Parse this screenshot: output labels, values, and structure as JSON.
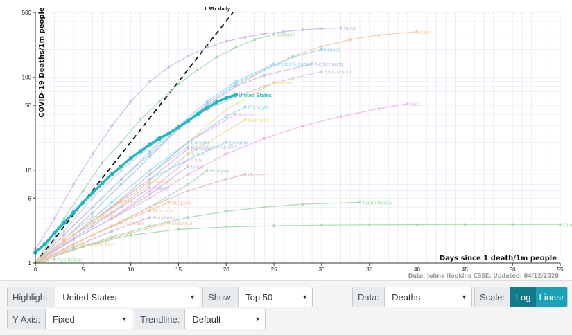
{
  "chart_data": {
    "type": "line",
    "title": "",
    "xlabel": "Days since 1 death/1m people",
    "ylabel": "COVID-19 Deaths/1m people",
    "yscale": "log",
    "xlim": [
      0,
      55
    ],
    "ylim": [
      1,
      500
    ],
    "xticks": [
      0,
      5,
      10,
      15,
      20,
      25,
      30,
      35,
      40,
      45,
      50,
      55
    ],
    "yticks": [
      1,
      5,
      10,
      50,
      100,
      500
    ],
    "source": "Data: Johns Hopkins CSSE; Updated: 04/12/2020",
    "highlight": "United States",
    "trendline": {
      "label": "1.35x daily",
      "rate": 1.35
    },
    "series": [
      {
        "name": "Spain",
        "color": "#c9b6e4",
        "end": [
          32,
          340
        ],
        "x": [
          0,
          2,
          4,
          6,
          8,
          10,
          12,
          14,
          16,
          18,
          20,
          22,
          24,
          26,
          28,
          30,
          32
        ],
        "y": [
          1.4,
          3,
          7,
          15,
          30,
          55,
          90,
          130,
          170,
          210,
          245,
          270,
          295,
          310,
          325,
          335,
          340
        ]
      },
      {
        "name": "Italy",
        "color": "#f7c59f",
        "end": [
          40,
          310
        ],
        "x": [
          0,
          3,
          6,
          9,
          12,
          15,
          18,
          21,
          24,
          27,
          30,
          33,
          36,
          40
        ],
        "y": [
          1,
          1.8,
          3.5,
          7,
          14,
          28,
          50,
          80,
          120,
          170,
          215,
          255,
          285,
          310
        ]
      },
      {
        "name": "Belgium",
        "color": "#9ed9a7",
        "end": [
          25,
          290
        ],
        "x": [
          0,
          3,
          5,
          7,
          9,
          11,
          13,
          15,
          17,
          19,
          21,
          23,
          25
        ],
        "y": [
          1,
          3,
          6,
          12,
          20,
          35,
          55,
          85,
          120,
          165,
          210,
          255,
          290
        ]
      },
      {
        "name": "France",
        "color": "#8fd7f0",
        "end": [
          30,
          200
        ],
        "x": [
          0,
          3,
          6,
          9,
          12,
          15,
          18,
          21,
          24,
          27,
          30
        ],
        "y": [
          1,
          1.8,
          3.5,
          7,
          14,
          28,
          52,
          85,
          120,
          165,
          200
        ]
      },
      {
        "name": "United Kingdom",
        "color": "#8fd7f0",
        "end": [
          25,
          140
        ],
        "x": [
          0,
          3,
          6,
          9,
          12,
          15,
          18,
          21,
          25
        ],
        "y": [
          1,
          2,
          4,
          8,
          16,
          30,
          55,
          90,
          140
        ]
      },
      {
        "name": "Netherlands",
        "color": "#c9b6e4",
        "end": [
          29,
          140
        ],
        "x": [
          0,
          3,
          6,
          9,
          12,
          15,
          18,
          21,
          24,
          29
        ],
        "y": [
          1,
          2,
          4,
          8,
          15,
          28,
          50,
          80,
          105,
          140
        ]
      },
      {
        "name": "Switzerland",
        "color": "#cccccc",
        "end": [
          30,
          115
        ],
        "x": [
          0,
          3,
          6,
          9,
          12,
          15,
          18,
          21,
          24,
          27,
          30
        ],
        "y": [
          1,
          2.2,
          5,
          10,
          18,
          30,
          45,
          62,
          80,
          98,
          115
        ]
      },
      {
        "name": "Sweden",
        "color": "#f1dc8a",
        "end": [
          25,
          88
        ],
        "x": [
          0,
          4,
          8,
          12,
          16,
          20,
          25
        ],
        "y": [
          1,
          2,
          4,
          9,
          20,
          45,
          88
        ]
      },
      {
        "name": "United States",
        "color": "#1fb8c4",
        "end": [
          21,
          65
        ],
        "x": [
          0,
          1,
          2,
          3,
          4,
          5,
          6,
          7,
          8,
          9,
          10,
          11,
          12,
          13,
          14,
          15,
          16,
          17,
          18,
          19,
          20,
          21
        ],
        "y": [
          1.3,
          1.6,
          2.1,
          2.7,
          3.5,
          4.5,
          5.7,
          7.2,
          9,
          11,
          13.5,
          16,
          19,
          22,
          25,
          29,
          34,
          40,
          47,
          54,
          60,
          65
        ]
      },
      {
        "name": "Portugal",
        "color": "#8fd7f0",
        "end": [
          22,
          48
        ],
        "x": [
          0,
          4,
          8,
          12,
          16,
          20,
          22
        ],
        "y": [
          1,
          2,
          4.5,
          10,
          20,
          38,
          48
        ]
      },
      {
        "name": "Iran",
        "color": "#efb3e3",
        "end": [
          39,
          52
        ],
        "x": [
          0,
          4,
          8,
          12,
          16,
          20,
          24,
          28,
          32,
          36,
          39
        ],
        "y": [
          1,
          1.8,
          3,
          5,
          9,
          15,
          22,
          30,
          38,
          46,
          52
        ]
      },
      {
        "name": "Austria",
        "color": "#efb3e3",
        "end": [
          21,
          40
        ],
        "x": [
          0,
          4,
          8,
          12,
          16,
          21
        ],
        "y": [
          1,
          2,
          4,
          9,
          20,
          40
        ]
      },
      {
        "name": "Germany",
        "color": "#f1dc8a",
        "end": [
          22,
          35
        ],
        "x": [
          0,
          4,
          8,
          12,
          16,
          22
        ],
        "y": [
          1,
          2,
          3.5,
          7,
          15,
          35
        ]
      },
      {
        "name": "Canada",
        "color": "#8fd7f0",
        "end": [
          16,
          20
        ],
        "x": [
          0,
          4,
          8,
          12,
          16
        ],
        "y": [
          1,
          2,
          4,
          9,
          20
        ]
      },
      {
        "name": "Ecuador",
        "color": "#8fd7f0",
        "end": [
          20,
          20
        ],
        "x": [
          0,
          4,
          8,
          12,
          16,
          20
        ],
        "y": [
          1,
          2,
          4,
          8,
          13,
          20
        ]
      },
      {
        "name": "Dominican Republic",
        "color": "#cccccc",
        "end": [
          16,
          18
        ],
        "x": [
          0,
          4,
          8,
          12,
          16
        ],
        "y": [
          1,
          2,
          4,
          9,
          18
        ]
      },
      {
        "name": "Denmark",
        "color": "#c9b6e4",
        "end": [
          16,
          17
        ],
        "x": [
          0,
          4,
          8,
          12,
          16
        ],
        "y": [
          1,
          2,
          4,
          8,
          17
        ]
      },
      {
        "name": "Turkey",
        "color": "#cccccc",
        "end": [
          16,
          15
        ],
        "x": [
          0,
          4,
          8,
          12,
          16
        ],
        "y": [
          1,
          2,
          3.5,
          7,
          15
        ]
      },
      {
        "name": "Chile",
        "color": "#efb3e3",
        "end": [
          16,
          13
        ],
        "x": [
          0,
          4,
          8,
          12,
          16
        ],
        "y": [
          1,
          1.8,
          3,
          6,
          13
        ]
      },
      {
        "name": "Israel",
        "color": "#c9b6e4",
        "end": [
          16,
          11
        ],
        "x": [
          0,
          4,
          8,
          12,
          16
        ],
        "y": [
          1,
          1.8,
          3,
          5.5,
          11
        ]
      },
      {
        "name": "Hungary",
        "color": "#9ed9a7",
        "end": [
          18,
          10
        ],
        "x": [
          0,
          4,
          8,
          12,
          16,
          18
        ],
        "y": [
          1,
          1.6,
          2.5,
          4,
          7,
          10
        ]
      },
      {
        "name": "Greece",
        "color": "#e8b7b7",
        "end": [
          22,
          9
        ],
        "x": [
          0,
          4,
          8,
          12,
          16,
          20,
          22
        ],
        "y": [
          1,
          1.6,
          2.5,
          4,
          6,
          8,
          9
        ]
      },
      {
        "name": "Algeria",
        "color": "#f7c59f",
        "end": [
          12,
          7.5
        ],
        "x": [
          0,
          3,
          6,
          9,
          12
        ],
        "y": [
          1,
          1.7,
          2.8,
          4.5,
          7.5
        ]
      },
      {
        "name": "Poland",
        "color": "#c9b6e4",
        "end": [
          12,
          6.5
        ],
        "x": [
          0,
          3,
          6,
          9,
          12
        ],
        "y": [
          1,
          1.6,
          2.5,
          4,
          6.5
        ]
      },
      {
        "name": "Bulgaria",
        "color": "#f7c59f",
        "end": [
          14,
          4.5
        ],
        "x": [
          0,
          4,
          8,
          12,
          14
        ],
        "y": [
          1,
          1.6,
          2.5,
          3.7,
          4.5
        ]
      },
      {
        "name": "Cuba",
        "color": "#f7c59f",
        "end": [
          9,
          4.6
        ],
        "x": [
          0,
          3,
          6,
          9
        ],
        "y": [
          1,
          1.7,
          2.8,
          4.6
        ]
      },
      {
        "name": "Morocco",
        "color": "#f7c59f",
        "end": [
          12,
          3.7
        ],
        "x": [
          0,
          4,
          8,
          12
        ],
        "y": [
          1,
          1.6,
          2.5,
          3.7
        ]
      },
      {
        "name": "Honduras",
        "color": "#c9b6e4",
        "end": [
          12,
          3.1
        ],
        "x": [
          0,
          4,
          8,
          12
        ],
        "y": [
          1,
          1.5,
          2.2,
          3.1
        ]
      },
      {
        "name": "Bahamas",
        "color": "#f7c59f",
        "end": [
          6,
          3.2
        ],
        "x": [
          0,
          3,
          6
        ],
        "y": [
          1,
          1.8,
          3.2
        ]
      },
      {
        "name": "Australia",
        "color": "#f7c59f",
        "end": [
          9,
          2.7
        ],
        "x": [
          0,
          3,
          6,
          9
        ],
        "y": [
          1,
          1.4,
          2,
          2.7
        ]
      },
      {
        "name": "Malaysia",
        "color": "#f7c59f",
        "end": [
          14,
          2.7
        ],
        "x": [
          0,
          5,
          10,
          14
        ],
        "y": [
          1,
          1.5,
          2.1,
          2.7
        ]
      },
      {
        "name": "South Korea",
        "color": "#9ed9a7",
        "end": [
          34,
          4.5
        ],
        "x": [
          0,
          4,
          8,
          12,
          16,
          20,
          24,
          28,
          34
        ],
        "y": [
          1,
          1.4,
          1.9,
          2.5,
          3.1,
          3.6,
          4,
          4.3,
          4.5
        ]
      },
      {
        "name": "China",
        "color": "#9ed9a7",
        "end": [
          55,
          2.6
        ],
        "x": [
          0,
          5,
          10,
          15,
          20,
          25,
          30,
          35,
          40,
          45,
          50,
          55
        ],
        "y": [
          1,
          1.5,
          2,
          2.3,
          2.45,
          2.52,
          2.56,
          2.58,
          2.59,
          2.6,
          2.6,
          2.6
        ]
      },
      {
        "name": "Burkina Faso",
        "color": "#f7c59f",
        "end": [
          5,
          1.6
        ],
        "x": [
          0,
          3,
          5
        ],
        "y": [
          1,
          1.3,
          1.6
        ]
      },
      {
        "name": "Azerbaijan",
        "color": "#9ed9a7",
        "end": [
          2,
          1.1
        ],
        "x": [
          0,
          2
        ],
        "y": [
          1,
          1.1
        ]
      }
    ]
  },
  "controls": {
    "highlight": {
      "label": "Highlight:",
      "value": "United States"
    },
    "show": {
      "label": "Show:",
      "value": "Top 50"
    },
    "data": {
      "label": "Data:",
      "value": "Deaths"
    },
    "scale": {
      "label": "Scale:",
      "options": [
        "Log",
        "Linear"
      ],
      "selected": "Log"
    },
    "yaxis": {
      "label": "Y-Axis:",
      "value": "Fixed"
    },
    "trendline": {
      "label": "Trendline:",
      "value": "Default"
    }
  }
}
